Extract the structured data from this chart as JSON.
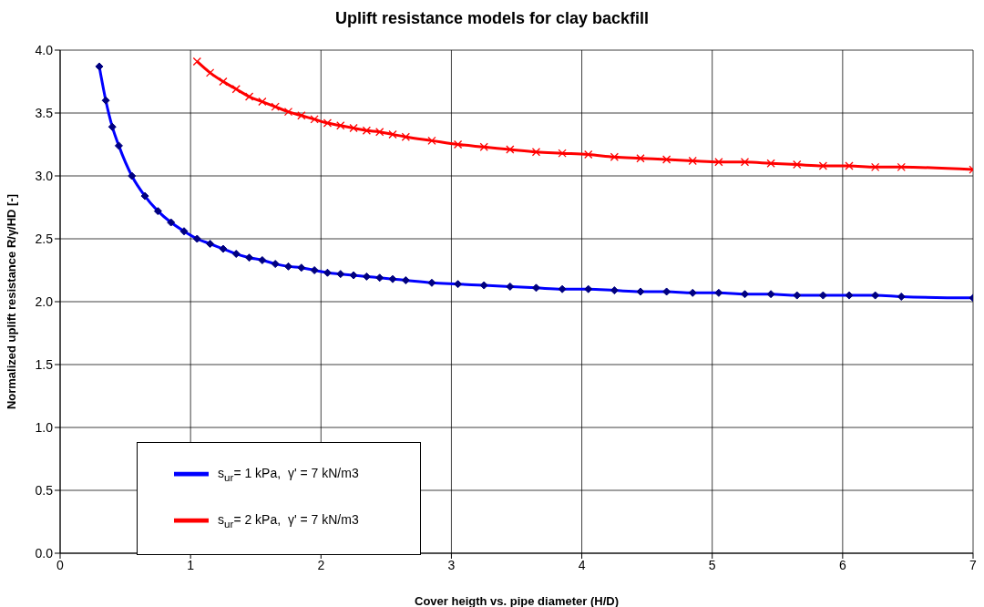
{
  "chart_data": {
    "type": "line",
    "title": "Uplift resistance models for clay backfill",
    "xlabel": "Cover heigth vs. pipe diameter (H/D)",
    "ylabel": "Normalized uplift resistance R/γ/HD [-]",
    "xlim": [
      0,
      7
    ],
    "xticks": [
      0,
      1,
      2,
      3,
      4,
      5,
      6,
      7
    ],
    "ylim": [
      0,
      4
    ],
    "yticks": [
      {
        "value": 0,
        "label": "0.0"
      },
      {
        "value": 0.5,
        "label": "0.5"
      },
      {
        "value": 1,
        "label": "1.0"
      },
      {
        "value": 1.5,
        "label": "1.5"
      },
      {
        "value": 2,
        "label": "2.0"
      },
      {
        "value": 2.5,
        "label": "2.5"
      },
      {
        "value": 3,
        "label": "3.0"
      },
      {
        "value": 3.5,
        "label": "3.5"
      },
      {
        "value": 4,
        "label": "4.0"
      }
    ],
    "grid": true,
    "legend": "bottom left",
    "line_style": "solid",
    "series": [
      {
        "name": "s$_{ur}$= 1 kPa,  γ' = 7 kN/m3",
        "color": "#0000ff",
        "marker": "diamond",
        "x": [
          0.3,
          0.35,
          0.4,
          0.45,
          0.55,
          0.65,
          0.75,
          0.85,
          0.95,
          1.05,
          1.15,
          1.25,
          1.35,
          1.45,
          1.55,
          1.65,
          1.75,
          1.85,
          1.95,
          2.05,
          2.15,
          2.25,
          2.35,
          2.45,
          2.55,
          2.65,
          2.85,
          3.05,
          3.25,
          3.45,
          3.65,
          3.85,
          4.05,
          4.25,
          4.45,
          4.65,
          4.85,
          5.05,
          5.25,
          5.45,
          5.65,
          5.85,
          6.05,
          6.25,
          6.45,
          7.0
        ],
        "values": [
          3.87,
          3.6,
          3.39,
          3.24,
          3.0,
          2.84,
          2.72,
          2.63,
          2.56,
          2.5,
          2.46,
          2.42,
          2.38,
          2.35,
          2.33,
          2.3,
          2.28,
          2.27,
          2.25,
          2.23,
          2.22,
          2.21,
          2.2,
          2.19,
          2.18,
          2.17,
          2.15,
          2.14,
          2.13,
          2.12,
          2.11,
          2.1,
          2.1,
          2.09,
          2.08,
          2.08,
          2.07,
          2.07,
          2.06,
          2.06,
          2.05,
          2.05,
          2.05,
          2.05,
          2.04,
          2.03
        ]
      },
      {
        "name": "s$_{ur}$= 2 kPa,  γ' = 7 kN/m3",
        "color": "#ff0000",
        "marker": "cross",
        "x": [
          1.05,
          1.15,
          1.25,
          1.35,
          1.45,
          1.55,
          1.65,
          1.75,
          1.85,
          1.95,
          2.05,
          2.15,
          2.25,
          2.35,
          2.45,
          2.55,
          2.65,
          2.85,
          3.05,
          3.25,
          3.45,
          3.65,
          3.85,
          4.05,
          4.25,
          4.45,
          4.65,
          4.85,
          5.05,
          5.25,
          5.45,
          5.65,
          5.85,
          6.05,
          6.25,
          6.45,
          7.0
        ],
        "values": [
          3.91,
          3.82,
          3.75,
          3.69,
          3.63,
          3.59,
          3.55,
          3.51,
          3.48,
          3.45,
          3.42,
          3.4,
          3.38,
          3.36,
          3.35,
          3.33,
          3.31,
          3.28,
          3.25,
          3.23,
          3.21,
          3.19,
          3.18,
          3.17,
          3.15,
          3.14,
          3.13,
          3.12,
          3.11,
          3.11,
          3.1,
          3.09,
          3.08,
          3.08,
          3.07,
          3.07,
          3.05
        ]
      }
    ]
  }
}
